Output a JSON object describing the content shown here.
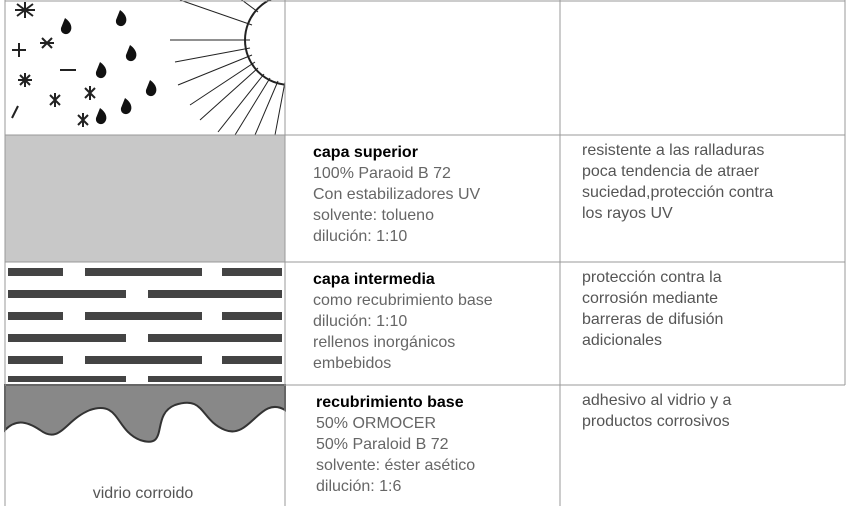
{
  "layers": [
    {
      "title": "capa superior",
      "lines": [
        "100% Paraoid B 72",
        "Con estabilizadores UV",
        "solvente: tolueno",
        "dilución: 1:10"
      ],
      "description": [
        "resistente a las ralladuras",
        "poca tendencia de atraer",
        "suciedad,protección contra",
        "los rayos UV"
      ]
    },
    {
      "title": "capa intermedia",
      "lines": [
        "como recubrimiento base",
        "dilución: 1:10",
        "rellenos inorgánicos",
        "embebidos"
      ],
      "description": [
        "protección contra la",
        "corrosión mediante",
        "barreras de difusión",
        "adicionales"
      ]
    },
    {
      "title": "recubrimiento base",
      "lines": [
        "50% ORMOCER",
        "50% Paraloid B 72",
        "solvente: éster asético",
        "dilución: 1:6"
      ],
      "description": [
        "adhesivo al vidrio y a",
        "productos corrosivos"
      ]
    }
  ],
  "caption": "vidrio corroido"
}
